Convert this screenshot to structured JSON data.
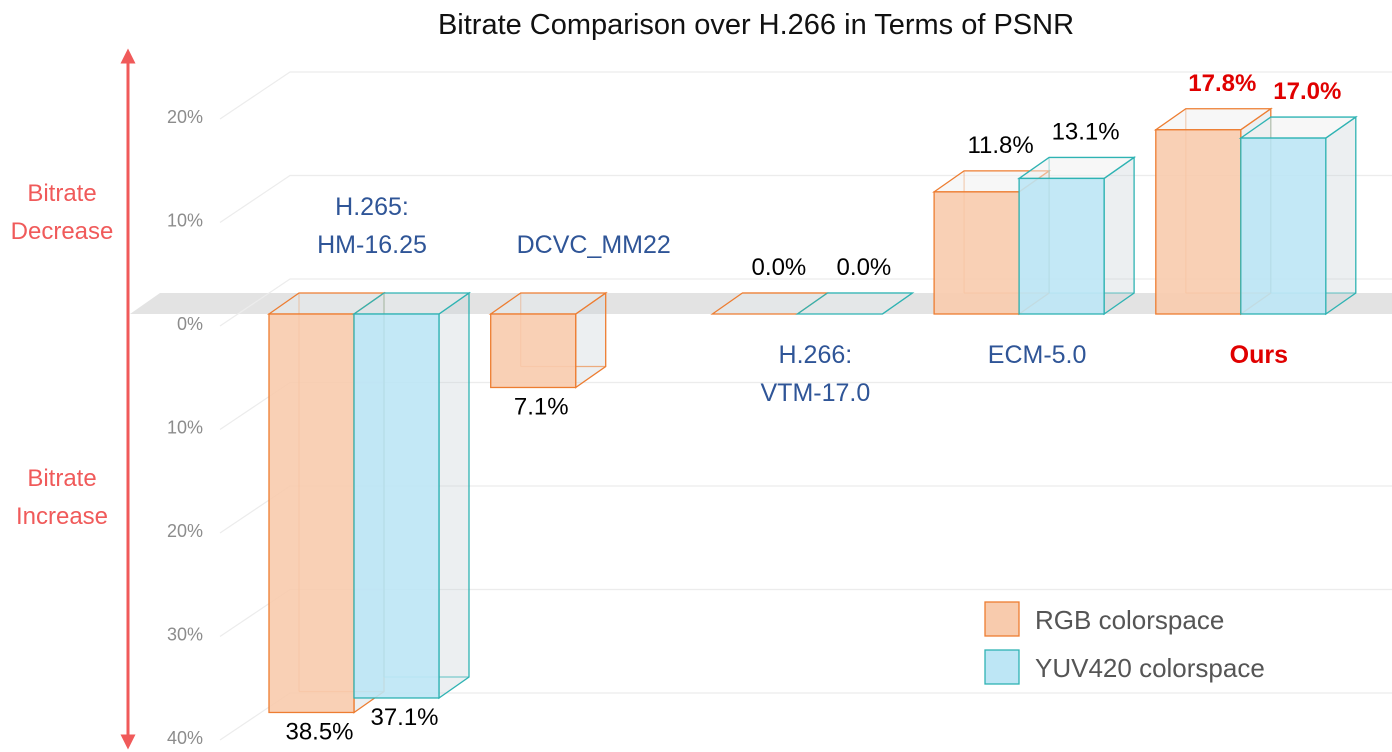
{
  "chart_data": {
    "type": "bar3d",
    "title": "Bitrate Comparison over H.266 in Terms of PSNR",
    "annotations": [
      "Bitrate\nDecrease",
      "Bitrate\nIncrease"
    ],
    "annotation_color": "#f05a5a",
    "categories": [
      "H.265:\nHM-16.25",
      "DCVC_MM22",
      "H.266:\nVTM-17.0",
      "ECM-5.0",
      "Ours"
    ],
    "category_colors": [
      "#2f5597",
      "#2f5597",
      "#2f5597",
      "#2f5597",
      "#e00000"
    ],
    "value_label_colors": [
      "#000000",
      "#000000",
      "#000000",
      "#000000",
      "#e00000"
    ],
    "series": [
      {
        "name": "RGB colorspace",
        "color": "#f8cbad",
        "edge_color": "#ed7d31",
        "values": [
          -38.5,
          -7.1,
          0.0,
          11.8,
          17.8
        ],
        "value_labels": [
          "38.5%",
          "7.1%",
          "0.0%",
          "11.8%",
          "17.8%"
        ]
      },
      {
        "name": "YUV420 colorspace",
        "color": "#bde6f5",
        "edge_color": "#2fb3b3",
        "values": [
          -37.1,
          null,
          0.0,
          13.1,
          17.0
        ],
        "value_labels": [
          "37.1%",
          null,
          "0.0%",
          "13.1%",
          "17.0%"
        ]
      }
    ],
    "ylim": [
      -40,
      20
    ],
    "yticks": [
      {
        "value": 20,
        "label": "20%"
      },
      {
        "value": 10,
        "label": "10%"
      },
      {
        "value": 0,
        "label": "0%"
      },
      {
        "value": -10,
        "label": "10%"
      },
      {
        "value": -20,
        "label": "20%"
      },
      {
        "value": -30,
        "label": "30%"
      },
      {
        "value": -40,
        "label": "40%"
      }
    ],
    "grid": true,
    "legend": "lower right"
  }
}
